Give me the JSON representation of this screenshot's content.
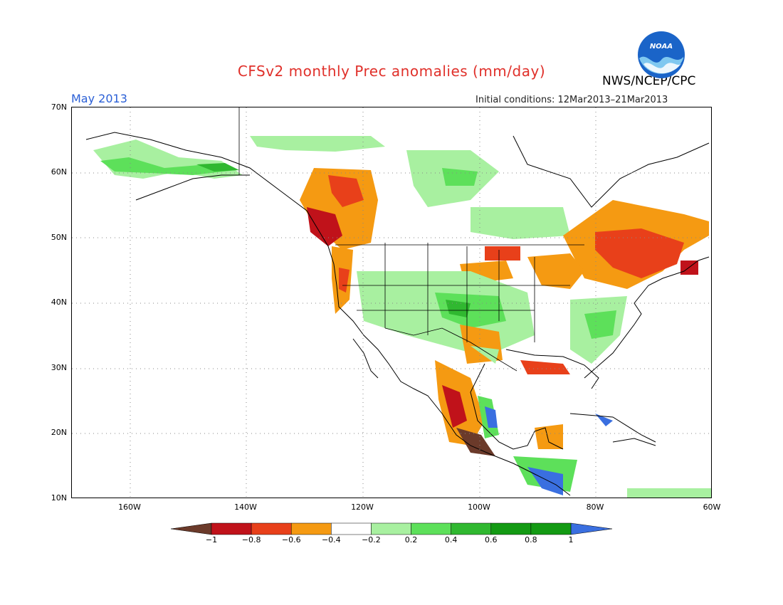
{
  "header": {
    "title": "CFSv2 monthly Prec anomalies (mm/day)",
    "agency": "NWS/NCEP/CPC",
    "month": "May 2013",
    "initial_conditions": "Initial conditions: 12Mar2013–21Mar2013",
    "logo_text": "NOAA"
  },
  "map": {
    "lat_labels": [
      "70N",
      "60N",
      "50N",
      "40N",
      "30N",
      "20N",
      "10N"
    ],
    "lon_labels": [
      "160W",
      "140W",
      "120W",
      "100W",
      "80W",
      "60W"
    ],
    "lat_range": [
      10,
      70
    ],
    "lon_range": [
      -171,
      -60
    ]
  },
  "colorbar": {
    "labels": [
      "−1",
      "−0.8",
      "−0.6",
      "−0.4",
      "−0.2",
      "0.2",
      "0.4",
      "0.6",
      "0.8",
      "1"
    ],
    "colors": [
      "#6b3a2a",
      "#c0121a",
      "#e8401a",
      "#f59a12",
      "#ffffff",
      "#a8f0a0",
      "#5de05a",
      "#30b830",
      "#139a13",
      "#3a6fe0"
    ]
  },
  "anomaly_regions": [
    {
      "name": "pacific-northwest-dry",
      "category": "-0.6"
    },
    {
      "name": "western-canada-dry",
      "category": "-0.4"
    },
    {
      "name": "northeast-dry",
      "category": "-0.6"
    },
    {
      "name": "quebec-dry",
      "category": "-0.4"
    },
    {
      "name": "central-plains-wet",
      "category": "0.4"
    },
    {
      "name": "southeast-wet",
      "category": "0.4"
    },
    {
      "name": "alaska-wet",
      "category": "0.4"
    },
    {
      "name": "northern-canada-wet",
      "category": "0.2"
    },
    {
      "name": "mexico-west-dry",
      "category": "-0.8"
    },
    {
      "name": "mexico-south-very-dry",
      "category": "-1"
    },
    {
      "name": "central-america-wet",
      "category": "1"
    }
  ]
}
